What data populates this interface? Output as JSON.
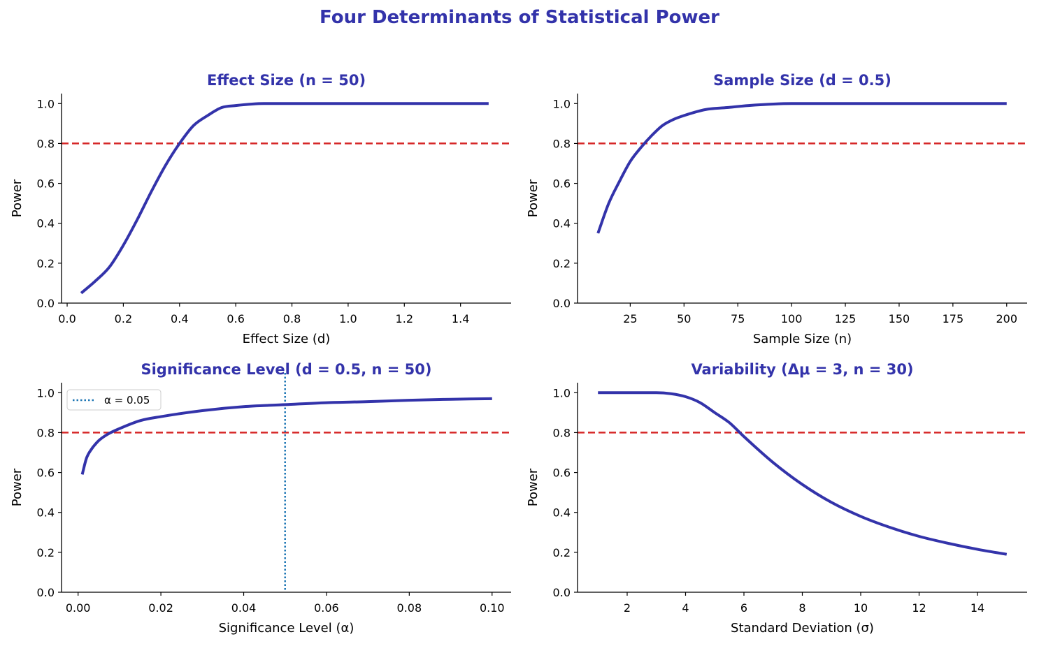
{
  "title": "Four Determinants of Statistical Power",
  "colors": {
    "title": "#3333aa",
    "curve": "#3333aa",
    "target": "#d62728",
    "alpha_marker": "#1f77b4"
  },
  "chart_data": [
    {
      "type": "line",
      "title": "Effect Size (n = 50)",
      "xlabel": "Effect Size (d)",
      "ylabel": "Power",
      "xlim": [
        -0.02,
        1.58
      ],
      "ylim": [
        0.0,
        1.05
      ],
      "xticks": [
        0.0,
        0.2,
        0.4,
        0.6,
        0.8,
        1.0,
        1.2,
        1.4
      ],
      "xtick_labels": [
        "0.0",
        "0.2",
        "0.4",
        "0.6",
        "0.8",
        "1.0",
        "1.2",
        "1.4"
      ],
      "yticks": [
        0.0,
        0.2,
        0.4,
        0.6,
        0.8,
        1.0
      ],
      "ytick_labels": [
        "0.0",
        "0.2",
        "0.4",
        "0.6",
        "0.8",
        "1.0"
      ],
      "hline": 0.8,
      "series": [
        {
          "name": "Power",
          "x": [
            0.05,
            0.1,
            0.15,
            0.2,
            0.25,
            0.3,
            0.35,
            0.4,
            0.45,
            0.5,
            0.55,
            0.6,
            0.7,
            0.8,
            1.0,
            1.2,
            1.5
          ],
          "y": [
            0.05,
            0.11,
            0.18,
            0.29,
            0.42,
            0.56,
            0.69,
            0.8,
            0.89,
            0.94,
            0.98,
            0.99,
            1.0,
            1.0,
            1.0,
            1.0,
            1.0
          ]
        }
      ]
    },
    {
      "type": "line",
      "title": "Sample Size (d = 0.5)",
      "xlabel": "Sample Size (n)",
      "ylabel": "Power",
      "xlim": [
        0.5,
        209.5
      ],
      "ylim": [
        0.0,
        1.05
      ],
      "xticks": [
        25,
        50,
        75,
        100,
        125,
        150,
        175,
        200
      ],
      "xtick_labels": [
        "25",
        "50",
        "75",
        "100",
        "125",
        "150",
        "175",
        "200"
      ],
      "yticks": [
        0.0,
        0.2,
        0.4,
        0.6,
        0.8,
        1.0
      ],
      "ytick_labels": [
        "0.0",
        "0.2",
        "0.4",
        "0.6",
        "0.8",
        "1.0"
      ],
      "hline": 0.8,
      "series": [
        {
          "name": "Power",
          "x": [
            10,
            15,
            20,
            25,
            30,
            35,
            40,
            45,
            50,
            60,
            70,
            80,
            100,
            125,
            150,
            200
          ],
          "y": [
            0.35,
            0.5,
            0.61,
            0.71,
            0.78,
            0.84,
            0.89,
            0.92,
            0.94,
            0.97,
            0.98,
            0.99,
            1.0,
            1.0,
            1.0,
            1.0
          ]
        }
      ]
    },
    {
      "type": "line",
      "title": "Significance Level (d = 0.5, n = 50)",
      "xlabel": "Significance Level (α)",
      "ylabel": "Power",
      "xlim": [
        -0.004,
        0.1046
      ],
      "ylim": [
        0.0,
        1.05
      ],
      "xticks": [
        0.0,
        0.02,
        0.04,
        0.06,
        0.08,
        0.1
      ],
      "xtick_labels": [
        "0.00",
        "0.02",
        "0.04",
        "0.06",
        "0.08",
        "0.10"
      ],
      "yticks": [
        0.0,
        0.2,
        0.4,
        0.6,
        0.8,
        1.0
      ],
      "ytick_labels": [
        "0.0",
        "0.2",
        "0.4",
        "0.6",
        "0.8",
        "1.0"
      ],
      "hline": 0.8,
      "vline": 0.05,
      "legend": {
        "position": "top-left",
        "entries": [
          "α = 0.05"
        ]
      },
      "series": [
        {
          "name": "Power",
          "x": [
            0.001,
            0.002,
            0.003,
            0.005,
            0.007,
            0.01,
            0.015,
            0.02,
            0.03,
            0.04,
            0.05,
            0.06,
            0.07,
            0.08,
            0.09,
            0.1
          ],
          "y": [
            0.59,
            0.67,
            0.71,
            0.76,
            0.79,
            0.82,
            0.86,
            0.88,
            0.91,
            0.93,
            0.94,
            0.95,
            0.955,
            0.962,
            0.967,
            0.97
          ]
        }
      ]
    },
    {
      "type": "line",
      "title": "Variability (Δμ = 3, n = 30)",
      "xlabel": "Standard Deviation (σ)",
      "ylabel": "Power",
      "xlim": [
        0.3,
        15.7
      ],
      "ylim": [
        0.0,
        1.05
      ],
      "xticks": [
        2,
        4,
        6,
        8,
        10,
        12,
        14
      ],
      "xtick_labels": [
        "2",
        "4",
        "6",
        "8",
        "10",
        "12",
        "14"
      ],
      "yticks": [
        0.0,
        0.2,
        0.4,
        0.6,
        0.8,
        1.0
      ],
      "ytick_labels": [
        "0.0",
        "0.2",
        "0.4",
        "0.6",
        "0.8",
        "1.0"
      ],
      "hline": 0.8,
      "series": [
        {
          "name": "Power",
          "x": [
            1,
            2,
            3,
            3.5,
            4,
            4.5,
            5,
            5.5,
            6,
            7,
            8,
            9,
            10,
            11,
            12,
            13,
            14,
            15
          ],
          "y": [
            1.0,
            1.0,
            1.0,
            0.995,
            0.98,
            0.95,
            0.9,
            0.85,
            0.78,
            0.65,
            0.54,
            0.45,
            0.38,
            0.325,
            0.28,
            0.245,
            0.215,
            0.19
          ]
        }
      ]
    }
  ]
}
